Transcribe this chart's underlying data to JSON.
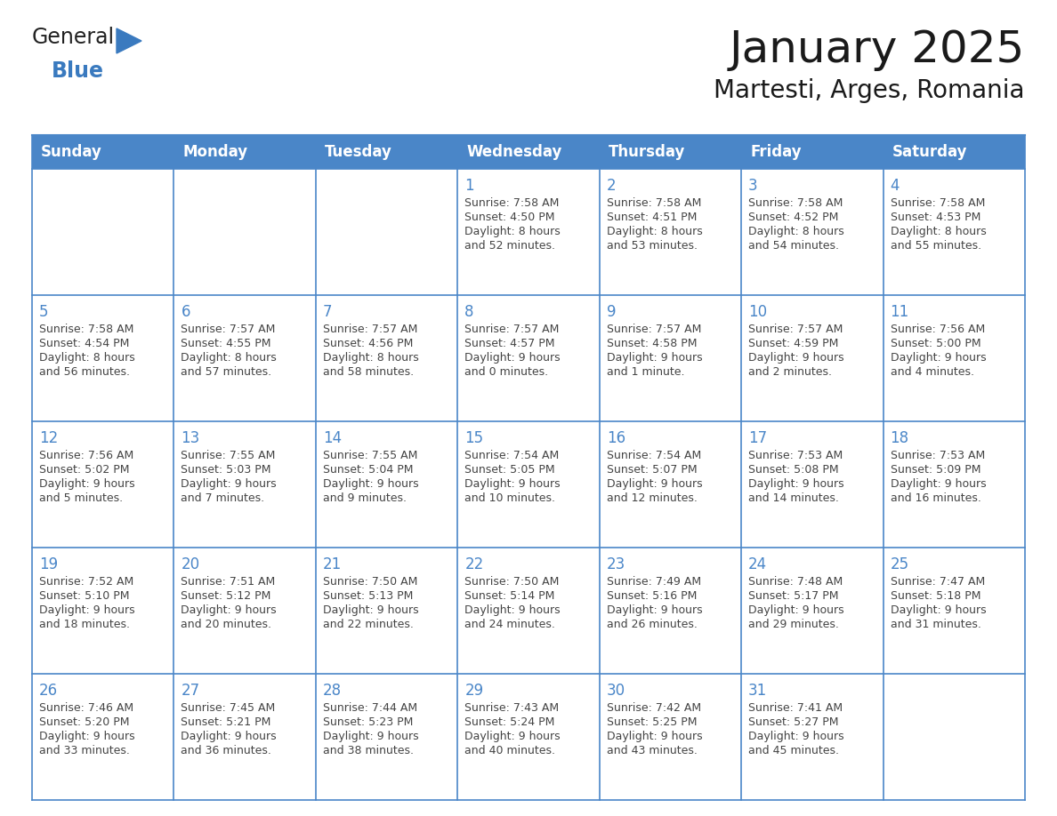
{
  "title": "January 2025",
  "subtitle": "Martesti, Arges, Romania",
  "days_of_week": [
    "Sunday",
    "Monday",
    "Tuesday",
    "Wednesday",
    "Thursday",
    "Friday",
    "Saturday"
  ],
  "header_bg": "#4a86c8",
  "header_text": "#ffffff",
  "cell_bg": "#ffffff",
  "border_color": "#4a86c8",
  "day_num_color": "#4a86c8",
  "text_color": "#444444",
  "title_color": "#1a1a1a",
  "subtitle_color": "#1a1a1a",
  "logo_general_color": "#222222",
  "logo_blue_color": "#3a7abf",
  "weeks": [
    [
      {
        "day": "",
        "sunrise": "",
        "sunset": "",
        "daylight": ""
      },
      {
        "day": "",
        "sunrise": "",
        "sunset": "",
        "daylight": ""
      },
      {
        "day": "",
        "sunrise": "",
        "sunset": "",
        "daylight": ""
      },
      {
        "day": "1",
        "sunrise": "7:58 AM",
        "sunset": "4:50 PM",
        "daylight": "8 hours\nand 52 minutes."
      },
      {
        "day": "2",
        "sunrise": "7:58 AM",
        "sunset": "4:51 PM",
        "daylight": "8 hours\nand 53 minutes."
      },
      {
        "day": "3",
        "sunrise": "7:58 AM",
        "sunset": "4:52 PM",
        "daylight": "8 hours\nand 54 minutes."
      },
      {
        "day": "4",
        "sunrise": "7:58 AM",
        "sunset": "4:53 PM",
        "daylight": "8 hours\nand 55 minutes."
      }
    ],
    [
      {
        "day": "5",
        "sunrise": "7:58 AM",
        "sunset": "4:54 PM",
        "daylight": "8 hours\nand 56 minutes."
      },
      {
        "day": "6",
        "sunrise": "7:57 AM",
        "sunset": "4:55 PM",
        "daylight": "8 hours\nand 57 minutes."
      },
      {
        "day": "7",
        "sunrise": "7:57 AM",
        "sunset": "4:56 PM",
        "daylight": "8 hours\nand 58 minutes."
      },
      {
        "day": "8",
        "sunrise": "7:57 AM",
        "sunset": "4:57 PM",
        "daylight": "9 hours\nand 0 minutes."
      },
      {
        "day": "9",
        "sunrise": "7:57 AM",
        "sunset": "4:58 PM",
        "daylight": "9 hours\nand 1 minute."
      },
      {
        "day": "10",
        "sunrise": "7:57 AM",
        "sunset": "4:59 PM",
        "daylight": "9 hours\nand 2 minutes."
      },
      {
        "day": "11",
        "sunrise": "7:56 AM",
        "sunset": "5:00 PM",
        "daylight": "9 hours\nand 4 minutes."
      }
    ],
    [
      {
        "day": "12",
        "sunrise": "7:56 AM",
        "sunset": "5:02 PM",
        "daylight": "9 hours\nand 5 minutes."
      },
      {
        "day": "13",
        "sunrise": "7:55 AM",
        "sunset": "5:03 PM",
        "daylight": "9 hours\nand 7 minutes."
      },
      {
        "day": "14",
        "sunrise": "7:55 AM",
        "sunset": "5:04 PM",
        "daylight": "9 hours\nand 9 minutes."
      },
      {
        "day": "15",
        "sunrise": "7:54 AM",
        "sunset": "5:05 PM",
        "daylight": "9 hours\nand 10 minutes."
      },
      {
        "day": "16",
        "sunrise": "7:54 AM",
        "sunset": "5:07 PM",
        "daylight": "9 hours\nand 12 minutes."
      },
      {
        "day": "17",
        "sunrise": "7:53 AM",
        "sunset": "5:08 PM",
        "daylight": "9 hours\nand 14 minutes."
      },
      {
        "day": "18",
        "sunrise": "7:53 AM",
        "sunset": "5:09 PM",
        "daylight": "9 hours\nand 16 minutes."
      }
    ],
    [
      {
        "day": "19",
        "sunrise": "7:52 AM",
        "sunset": "5:10 PM",
        "daylight": "9 hours\nand 18 minutes."
      },
      {
        "day": "20",
        "sunrise": "7:51 AM",
        "sunset": "5:12 PM",
        "daylight": "9 hours\nand 20 minutes."
      },
      {
        "day": "21",
        "sunrise": "7:50 AM",
        "sunset": "5:13 PM",
        "daylight": "9 hours\nand 22 minutes."
      },
      {
        "day": "22",
        "sunrise": "7:50 AM",
        "sunset": "5:14 PM",
        "daylight": "9 hours\nand 24 minutes."
      },
      {
        "day": "23",
        "sunrise": "7:49 AM",
        "sunset": "5:16 PM",
        "daylight": "9 hours\nand 26 minutes."
      },
      {
        "day": "24",
        "sunrise": "7:48 AM",
        "sunset": "5:17 PM",
        "daylight": "9 hours\nand 29 minutes."
      },
      {
        "day": "25",
        "sunrise": "7:47 AM",
        "sunset": "5:18 PM",
        "daylight": "9 hours\nand 31 minutes."
      }
    ],
    [
      {
        "day": "26",
        "sunrise": "7:46 AM",
        "sunset": "5:20 PM",
        "daylight": "9 hours\nand 33 minutes."
      },
      {
        "day": "27",
        "sunrise": "7:45 AM",
        "sunset": "5:21 PM",
        "daylight": "9 hours\nand 36 minutes."
      },
      {
        "day": "28",
        "sunrise": "7:44 AM",
        "sunset": "5:23 PM",
        "daylight": "9 hours\nand 38 minutes."
      },
      {
        "day": "29",
        "sunrise": "7:43 AM",
        "sunset": "5:24 PM",
        "daylight": "9 hours\nand 40 minutes."
      },
      {
        "day": "30",
        "sunrise": "7:42 AM",
        "sunset": "5:25 PM",
        "daylight": "9 hours\nand 43 minutes."
      },
      {
        "day": "31",
        "sunrise": "7:41 AM",
        "sunset": "5:27 PM",
        "daylight": "9 hours\nand 45 minutes."
      },
      {
        "day": "",
        "sunrise": "",
        "sunset": "",
        "daylight": ""
      }
    ]
  ],
  "figsize": [
    11.88,
    9.18
  ],
  "dpi": 100
}
